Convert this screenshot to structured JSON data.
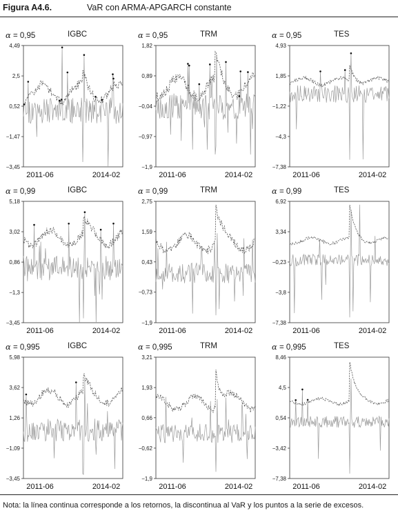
{
  "figure": {
    "label": "Figura A4.6.",
    "title": "VaR con ARMA-APGARCH constante",
    "note": "Nota: la línea continua corresponde a los retornos, la discontinua al VaR y los puntos a la serie de excesos."
  },
  "colors": {
    "returns": "#9a9a9a",
    "var": "#555555",
    "exceedance": "#111111",
    "axis": "#333333"
  },
  "chart_data": [
    {
      "type": "line",
      "alpha_symbol": "α",
      "alpha_value": "= 0,95",
      "series_label": "IGBC",
      "yticks": [
        "4,49",
        "2,5",
        "0,52",
        "−1,47",
        "−3,45"
      ],
      "ylim": [
        -3.45,
        4.49
      ],
      "x_ticks": [
        "2011-06",
        "2014-02"
      ],
      "returns": {
        "mean": 0.25,
        "vol": 0.9,
        "spike_max": 4.3,
        "spike_min": -3.3
      },
      "var": {
        "base": 1.4,
        "amp": 0.55,
        "shock": 0.9
      },
      "exceedances": "marked",
      "seed": 11,
      "series": [
        {
          "name": "retornos",
          "style": "solid"
        },
        {
          "name": "VaR",
          "style": "dashed"
        },
        {
          "name": "excesos",
          "style": "points"
        }
      ]
    },
    {
      "type": "line",
      "alpha_symbol": "α",
      "alpha_value": "= 0,95",
      "series_label": "TRM",
      "yticks": [
        "1,82",
        "0,89",
        "−0,04",
        "−0,97",
        "−1,9"
      ],
      "ylim": [
        -1.9,
        1.82
      ],
      "x_ticks": [
        "2011-06",
        "2014-02"
      ],
      "returns": {
        "mean": -0.05,
        "vol": 0.4,
        "spike_max": 1.7,
        "spike_min": -1.6
      },
      "var": {
        "base": 0.55,
        "amp": 0.3,
        "shock": 0.8
      },
      "exceedances": "marked",
      "seed": 23,
      "series": [
        {
          "name": "retornos",
          "style": "solid"
        },
        {
          "name": "VaR",
          "style": "dashed"
        },
        {
          "name": "excesos",
          "style": "points"
        }
      ]
    },
    {
      "type": "line",
      "alpha_symbol": "α",
      "alpha_value": "= 0,95",
      "series_label": "TES",
      "yticks": [
        "4,93",
        "1,85",
        "−1,22",
        "−4,3",
        "−7,38"
      ],
      "ylim": [
        -7.38,
        4.93
      ],
      "x_ticks": [
        "2011-06",
        "2014-02"
      ],
      "returns": {
        "mean": 0.0,
        "vol": 0.9,
        "spike_max": 4.6,
        "spike_min": -7.0
      },
      "var": {
        "base": 1.3,
        "amp": 0.35,
        "shock": 1.6
      },
      "exceedances": "marked",
      "seed": 37,
      "series": [
        {
          "name": "retornos",
          "style": "solid"
        },
        {
          "name": "VaR",
          "style": "dashed"
        },
        {
          "name": "excesos",
          "style": "points"
        }
      ]
    },
    {
      "type": "line",
      "alpha_symbol": "α",
      "alpha_value": "= 0,99",
      "series_label": "IGBC",
      "yticks": [
        "5,18",
        "3,02",
        "0,86",
        "−1,3",
        "−3,45"
      ],
      "ylim": [
        -3.45,
        5.18
      ],
      "x_ticks": [
        "2011-06",
        "2014-02"
      ],
      "returns": {
        "mean": 0.4,
        "vol": 0.9,
        "spike_max": 4.9,
        "spike_min": -3.3
      },
      "var": {
        "base": 2.6,
        "amp": 0.55,
        "shock": 1.1
      },
      "exceedances": "marked",
      "seed": 41,
      "series": [
        {
          "name": "retornos",
          "style": "solid"
        },
        {
          "name": "VaR",
          "style": "dashed"
        },
        {
          "name": "excesos",
          "style": "points"
        }
      ]
    },
    {
      "type": "line",
      "alpha_symbol": "α",
      "alpha_value": "= 0,99",
      "series_label": "TRM",
      "yticks": [
        "2,75",
        "1,59",
        "0,43",
        "−0,73",
        "−1,9"
      ],
      "ylim": [
        -1.9,
        2.75
      ],
      "x_ticks": [
        "2011-06",
        "2014-02"
      ],
      "returns": {
        "mean": 0.0,
        "vol": 0.4,
        "spike_max": 1.7,
        "spike_min": -1.7
      },
      "var": {
        "base": 1.15,
        "amp": 0.3,
        "shock": 1.3
      },
      "exceedances": "none",
      "seed": 53,
      "series": [
        {
          "name": "retornos",
          "style": "solid"
        },
        {
          "name": "VaR",
          "style": "dashed"
        }
      ]
    },
    {
      "type": "line",
      "alpha_symbol": "α",
      "alpha_value": "= 0,99",
      "series_label": "TES",
      "yticks": [
        "6,92",
        "3,34",
        "−0,23",
        "−3,8",
        "−7,38"
      ],
      "ylim": [
        -7.38,
        6.92
      ],
      "x_ticks": [
        "2011-06",
        "2014-02"
      ],
      "returns": {
        "mean": 0.0,
        "vol": 0.7,
        "spike_max": 6.5,
        "spike_min": -7.1
      },
      "var": {
        "base": 2.3,
        "amp": 0.35,
        "shock": 4.0
      },
      "exceedances": "none",
      "seed": 67,
      "series": [
        {
          "name": "retornos",
          "style": "solid"
        },
        {
          "name": "VaR",
          "style": "dashed"
        }
      ]
    },
    {
      "type": "line",
      "alpha_symbol": "α",
      "alpha_value": "= 0,995",
      "series_label": "IGBC",
      "yticks": [
        "5,98",
        "3,62",
        "1,26",
        "−1,09",
        "−3,45"
      ],
      "ylim": [
        -3.45,
        5.98
      ],
      "x_ticks": [
        "2011-06",
        "2014-02"
      ],
      "returns": {
        "mean": 0.3,
        "vol": 0.9,
        "spike_max": 4.8,
        "spike_min": -3.3
      },
      "var": {
        "base": 2.9,
        "amp": 0.55,
        "shock": 1.3
      },
      "exceedances": "marked",
      "seed": 79,
      "series": [
        {
          "name": "retornos",
          "style": "solid"
        },
        {
          "name": "VaR",
          "style": "dashed"
        },
        {
          "name": "excesos",
          "style": "points"
        }
      ]
    },
    {
      "type": "line",
      "alpha_symbol": "α",
      "alpha_value": "= 0,995",
      "series_label": "TRM",
      "yticks": [
        "3,21",
        "1,93",
        "0,66",
        "−0,62",
        "−1,9"
      ],
      "ylim": [
        -1.9,
        3.21
      ],
      "x_ticks": [
        "2011-06",
        "2014-02"
      ],
      "returns": {
        "mean": 0.0,
        "vol": 0.4,
        "spike_max": 1.6,
        "spike_min": -1.7
      },
      "var": {
        "base": 1.3,
        "amp": 0.3,
        "shock": 1.6
      },
      "exceedances": "none",
      "seed": 83,
      "series": [
        {
          "name": "retornos",
          "style": "solid"
        },
        {
          "name": "VaR",
          "style": "dashed"
        }
      ]
    },
    {
      "type": "line",
      "alpha_symbol": "α",
      "alpha_value": "= 0,995",
      "series_label": "TES",
      "yticks": [
        "8,46",
        "4,5",
        "0,54",
        "−3,42",
        "−7,38"
      ],
      "ylim": [
        -7.38,
        8.46
      ],
      "x_ticks": [
        "2011-06",
        "2014-02"
      ],
      "returns": {
        "mean": 0.0,
        "vol": 0.75,
        "spike_max": 6.3,
        "spike_min": -7.1
      },
      "var": {
        "base": 2.7,
        "amp": 0.35,
        "shock": 5.2
      },
      "exceedances": "marked",
      "seed": 97,
      "series": [
        {
          "name": "retornos",
          "style": "solid"
        },
        {
          "name": "VaR",
          "style": "dashed"
        },
        {
          "name": "excesos",
          "style": "points"
        }
      ]
    }
  ]
}
